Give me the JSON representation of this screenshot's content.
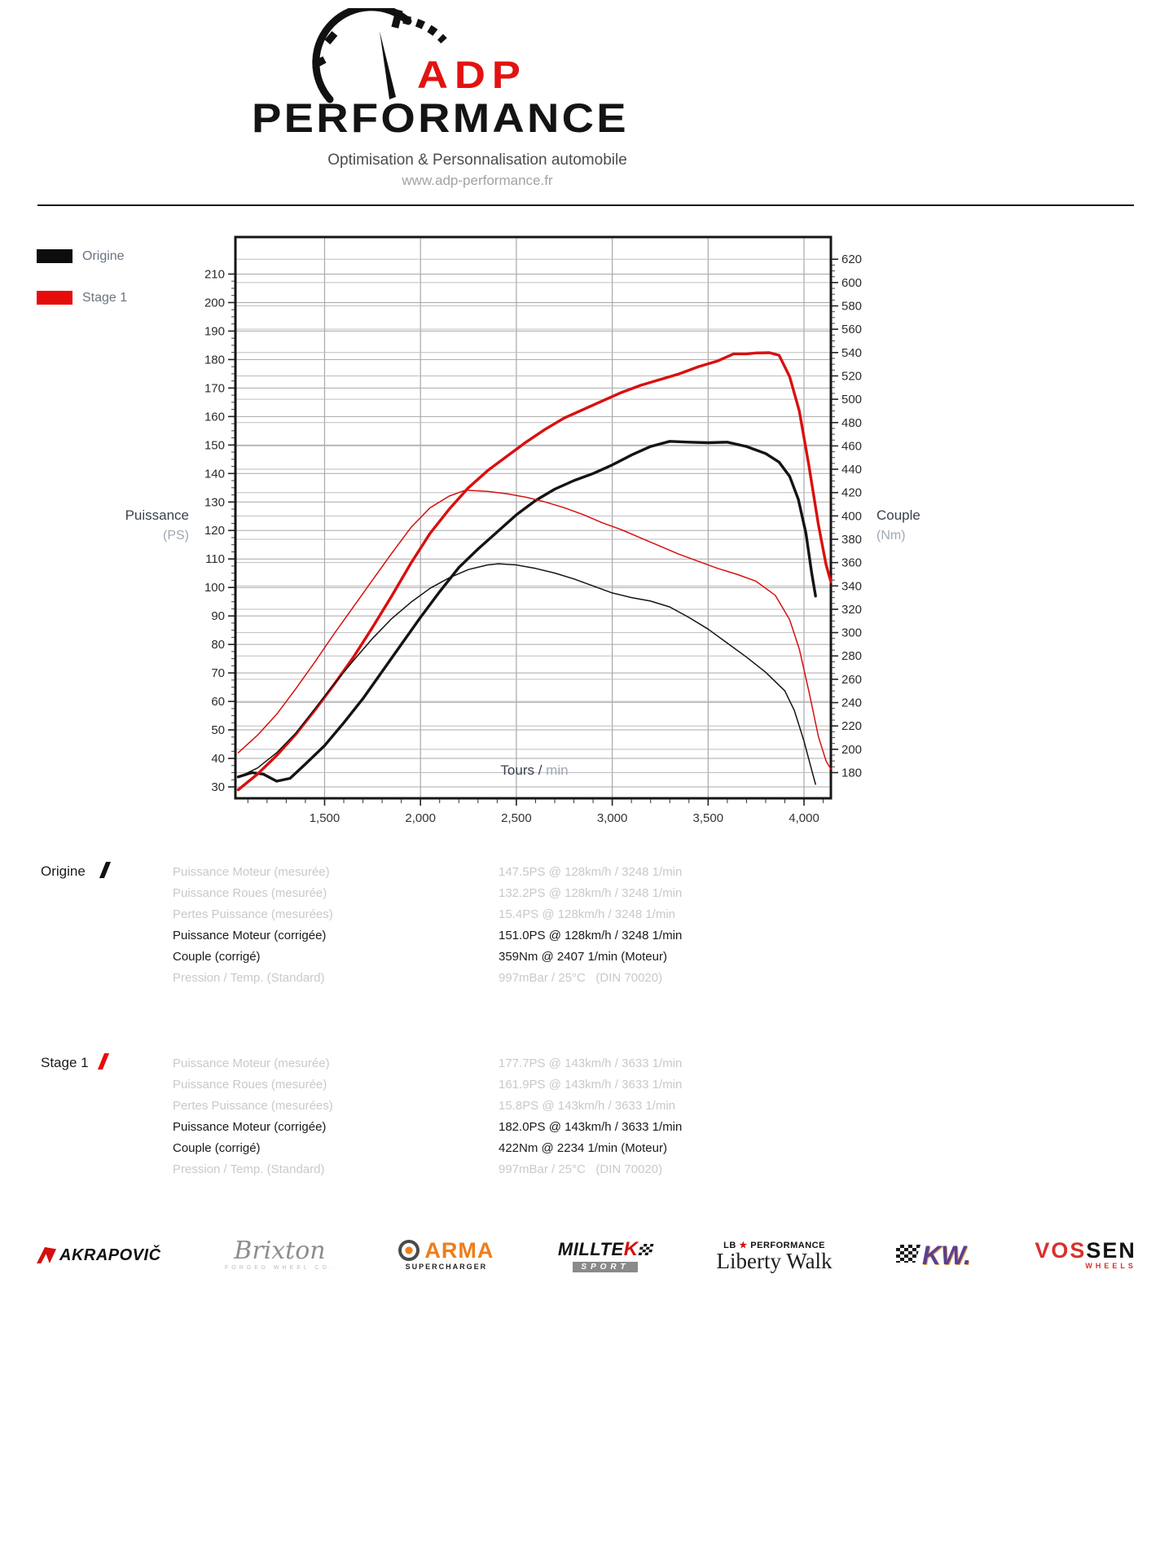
{
  "header": {
    "brand_top": "ADP",
    "brand_bottom": "PERFORMANCE",
    "tagline": "Optimisation & Personnalisation automobile",
    "website": "www.adp-performance.fr"
  },
  "legend": [
    {
      "label": "Origine",
      "color": "#0d0d0d"
    },
    {
      "label": "Stage 1",
      "color": "#e60c0c"
    }
  ],
  "chart_data": {
    "type": "line",
    "title": "",
    "xlabel": "Tours / min",
    "ylabel_left": "Puissance (PS)",
    "ylabel_right": "Couple (Nm)",
    "axis_titles": {
      "left_main": "Puissance",
      "left_sub": "(PS)",
      "right_main": "Couple",
      "right_sub": "(Nm)",
      "x_main": "Tours /",
      "x_sub": " min"
    },
    "x_range": [
      1035,
      4140
    ],
    "x_ticks": [
      {
        "v": 1500,
        "label": "1,500"
      },
      {
        "v": 2000,
        "label": "2,000"
      },
      {
        "v": 2500,
        "label": "2,500"
      },
      {
        "v": 3000,
        "label": "3,000"
      },
      {
        "v": 3500,
        "label": "3,500"
      },
      {
        "v": 4000,
        "label": "4,000"
      }
    ],
    "y_left": {
      "range": [
        26,
        223
      ],
      "ticks": [
        210,
        200,
        190,
        180,
        170,
        160,
        150,
        140,
        130,
        120,
        110,
        100,
        90,
        80,
        70,
        60,
        50,
        40,
        30
      ]
    },
    "y_right": {
      "range": [
        158,
        639
      ],
      "ticks": [
        620,
        600,
        580,
        560,
        540,
        520,
        500,
        480,
        460,
        440,
        420,
        400,
        380,
        360,
        340,
        320,
        300,
        280,
        260,
        240,
        220,
        200,
        180
      ]
    },
    "minor": {
      "x": 100,
      "left": 2.5,
      "right": 5
    },
    "grid_color": "#a8a8a8",
    "border_color": "#161616",
    "series": [
      {
        "name": "Origine Puissance (PS)",
        "axis": "left",
        "color": "#141414",
        "width": 3.4,
        "points": [
          [
            1050,
            33.5
          ],
          [
            1120,
            35
          ],
          [
            1180,
            34.5
          ],
          [
            1250,
            32
          ],
          [
            1320,
            33
          ],
          [
            1400,
            38
          ],
          [
            1500,
            44.5
          ],
          [
            1600,
            52.5
          ],
          [
            1700,
            61
          ],
          [
            1800,
            70.5
          ],
          [
            1900,
            80
          ],
          [
            2000,
            89.5
          ],
          [
            2100,
            98.5
          ],
          [
            2200,
            107
          ],
          [
            2300,
            113.5
          ],
          [
            2400,
            119.5
          ],
          [
            2500,
            125.5
          ],
          [
            2600,
            130.5
          ],
          [
            2700,
            134.5
          ],
          [
            2800,
            137.5
          ],
          [
            2900,
            140
          ],
          [
            3000,
            143
          ],
          [
            3100,
            146.5
          ],
          [
            3200,
            149.5
          ],
          [
            3300,
            151.3
          ],
          [
            3400,
            151
          ],
          [
            3500,
            150.8
          ],
          [
            3600,
            151
          ],
          [
            3700,
            149.5
          ],
          [
            3800,
            147
          ],
          [
            3870,
            144
          ],
          [
            3925,
            139
          ],
          [
            3970,
            131
          ],
          [
            4010,
            119
          ],
          [
            4040,
            105
          ],
          [
            4060,
            97
          ]
        ]
      },
      {
        "name": "Stage 1 Puissance (PS)",
        "axis": "left",
        "color": "#d90f0f",
        "width": 3.4,
        "points": [
          [
            1050,
            29
          ],
          [
            1150,
            34.5
          ],
          [
            1250,
            41
          ],
          [
            1350,
            48.5
          ],
          [
            1450,
            57
          ],
          [
            1550,
            66
          ],
          [
            1650,
            75.5
          ],
          [
            1750,
            86
          ],
          [
            1850,
            97
          ],
          [
            1950,
            108.5
          ],
          [
            2050,
            119
          ],
          [
            2150,
            127.5
          ],
          [
            2250,
            135
          ],
          [
            2350,
            141
          ],
          [
            2450,
            146
          ],
          [
            2550,
            151
          ],
          [
            2650,
            155.5
          ],
          [
            2750,
            159.5
          ],
          [
            2850,
            162.5
          ],
          [
            2950,
            165.5
          ],
          [
            3050,
            168.5
          ],
          [
            3150,
            171
          ],
          [
            3250,
            173
          ],
          [
            3350,
            175
          ],
          [
            3450,
            177.5
          ],
          [
            3550,
            179.5
          ],
          [
            3633,
            182
          ],
          [
            3700,
            182
          ],
          [
            3750,
            182.3
          ],
          [
            3820,
            182.4
          ],
          [
            3870,
            181.5
          ],
          [
            3925,
            174
          ],
          [
            3975,
            162
          ],
          [
            4025,
            143
          ],
          [
            4075,
            122
          ],
          [
            4115,
            108
          ],
          [
            4140,
            102
          ]
        ]
      },
      {
        "name": "Origine Couple (Nm)",
        "axis": "right",
        "color": "#141414",
        "width": 1.5,
        "points": [
          [
            1050,
            176
          ],
          [
            1150,
            184
          ],
          [
            1250,
            197
          ],
          [
            1350,
            214
          ],
          [
            1450,
            235
          ],
          [
            1550,
            256
          ],
          [
            1650,
            276
          ],
          [
            1750,
            295
          ],
          [
            1850,
            312
          ],
          [
            1950,
            326
          ],
          [
            2050,
            338
          ],
          [
            2150,
            347
          ],
          [
            2250,
            354
          ],
          [
            2350,
            358
          ],
          [
            2407,
            359
          ],
          [
            2500,
            358
          ],
          [
            2600,
            355
          ],
          [
            2700,
            351
          ],
          [
            2800,
            346
          ],
          [
            2900,
            340
          ],
          [
            3000,
            334
          ],
          [
            3100,
            330
          ],
          [
            3200,
            327
          ],
          [
            3300,
            322
          ],
          [
            3400,
            313
          ],
          [
            3500,
            303
          ],
          [
            3600,
            291
          ],
          [
            3700,
            279
          ],
          [
            3800,
            266
          ],
          [
            3900,
            250
          ],
          [
            3950,
            233
          ],
          [
            4000,
            207
          ],
          [
            4040,
            182
          ],
          [
            4060,
            170
          ]
        ]
      },
      {
        "name": "Stage 1 Couple (Nm)",
        "axis": "right",
        "color": "#d90f0f",
        "width": 1.5,
        "points": [
          [
            1050,
            197
          ],
          [
            1150,
            212
          ],
          [
            1250,
            230
          ],
          [
            1350,
            252
          ],
          [
            1450,
            275
          ],
          [
            1550,
            299
          ],
          [
            1650,
            322
          ],
          [
            1750,
            345
          ],
          [
            1850,
            368
          ],
          [
            1950,
            390
          ],
          [
            2050,
            407
          ],
          [
            2150,
            417
          ],
          [
            2234,
            422
          ],
          [
            2350,
            421
          ],
          [
            2450,
            419
          ],
          [
            2550,
            416
          ],
          [
            2650,
            412
          ],
          [
            2750,
            407
          ],
          [
            2850,
            401
          ],
          [
            2950,
            394
          ],
          [
            3050,
            388
          ],
          [
            3150,
            381
          ],
          [
            3250,
            374
          ],
          [
            3350,
            367
          ],
          [
            3450,
            361
          ],
          [
            3550,
            355
          ],
          [
            3650,
            350
          ],
          [
            3750,
            344
          ],
          [
            3850,
            332
          ],
          [
            3925,
            311
          ],
          [
            3975,
            286
          ],
          [
            4025,
            250
          ],
          [
            4075,
            211
          ],
          [
            4115,
            190
          ],
          [
            4140,
            183
          ]
        ]
      }
    ]
  },
  "results": [
    {
      "title": "Origine",
      "slash_color": "#111111",
      "rows": [
        {
          "label": "Puissance Moteur (mesurée)",
          "value": "147.5PS @ 128km/h / 3248 1/min",
          "muted": true
        },
        {
          "label": "Puissance Roues (mesurée)",
          "value": "132.2PS @ 128km/h / 3248 1/min",
          "muted": true
        },
        {
          "label": "Pertes Puissance (mesurées)",
          "value": "15.4PS @ 128km/h / 3248 1/min",
          "muted": true
        },
        {
          "label": "Puissance Moteur (corrigée)",
          "value": "151.0PS @ 128km/h / 3248 1/min",
          "muted": false
        },
        {
          "label": "Couple (corrigé)",
          "value": "359Nm @ 2407 1/min (Moteur)",
          "muted": false
        },
        {
          "label": "Pression / Temp. (Standard)",
          "value": "997mBar / 25°C   (DIN 70020)",
          "muted": true
        }
      ]
    },
    {
      "title": "Stage 1",
      "slash_color": "#e60c0c",
      "rows": [
        {
          "label": "Puissance Moteur (mesurée)",
          "value": "177.7PS @ 143km/h / 3633 1/min",
          "muted": true
        },
        {
          "label": "Puissance Roues (mesurée)",
          "value": "161.9PS @ 143km/h / 3633 1/min",
          "muted": true
        },
        {
          "label": "Pertes Puissance (mesurées)",
          "value": "15.8PS @ 143km/h / 3633 1/min",
          "muted": true
        },
        {
          "label": "Puissance Moteur (corrigée)",
          "value": "182.0PS @ 143km/h / 3633 1/min",
          "muted": false
        },
        {
          "label": "Couple (corrigé)",
          "value": "422Nm @ 2234 1/min (Moteur)",
          "muted": false
        },
        {
          "label": "Pression / Temp. (Standard)",
          "value": "997mBar / 25°C   (DIN 70020)",
          "muted": true
        }
      ]
    }
  ],
  "footer": {
    "brands": [
      {
        "name": "AKRAPOVIČ"
      },
      {
        "name": "Brixton",
        "sub": "FORGED WHEEL CO."
      },
      {
        "name": "ARMA",
        "sub": "SUPERCHARGER"
      },
      {
        "name_main": "MILLTE",
        "name_accent": "K",
        "sub": "SPORT"
      },
      {
        "prefix": "LB",
        "star": "★",
        "suffix": "PERFORMANCE",
        "name": "Liberty Walk"
      },
      {
        "name": "KW."
      },
      {
        "name_a": "VOS",
        "name_b": "SEN",
        "sub": "WHEELS"
      }
    ]
  }
}
